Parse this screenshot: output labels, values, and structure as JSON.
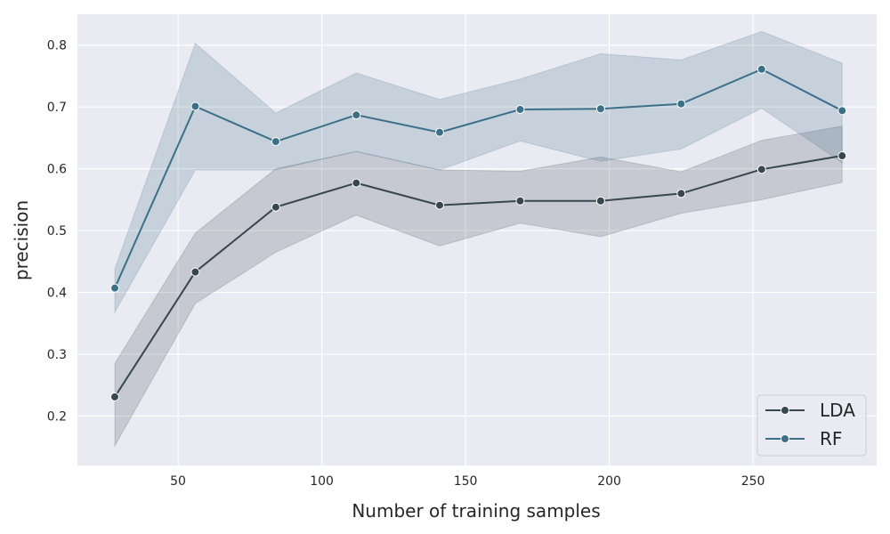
{
  "chart_data": {
    "type": "line",
    "title": "",
    "xlabel": "Number of training samples",
    "ylabel": "precision",
    "xlim": [
      15,
      293
    ],
    "ylim": [
      0.12,
      0.85
    ],
    "xticks": [
      50,
      100,
      150,
      200,
      250
    ],
    "yticks": [
      0.2,
      0.3,
      0.4,
      0.5,
      0.6,
      0.7,
      0.8
    ],
    "grid": true,
    "legend_position": "bottom-right",
    "x": [
      28,
      56,
      84,
      112,
      141,
      169,
      197,
      225,
      253,
      281
    ],
    "series": [
      {
        "name": "LDA",
        "color": "#37474f",
        "values": [
          0.231,
          0.433,
          0.538,
          0.577,
          0.541,
          0.548,
          0.548,
          0.56,
          0.599,
          0.621
        ],
        "ci_lower": [
          0.152,
          0.382,
          0.465,
          0.525,
          0.475,
          0.512,
          0.49,
          0.528,
          0.55,
          0.578
        ],
        "ci_upper": [
          0.285,
          0.496,
          0.6,
          0.628,
          0.598,
          0.596,
          0.619,
          0.595,
          0.646,
          0.669
        ]
      },
      {
        "name": "RF",
        "color": "#3b7088",
        "values": [
          0.407,
          0.701,
          0.644,
          0.687,
          0.659,
          0.696,
          0.697,
          0.705,
          0.761,
          0.694
        ],
        "ci_lower": [
          0.368,
          0.598,
          0.598,
          0.628,
          0.598,
          0.645,
          0.612,
          0.632,
          0.698,
          0.61
        ],
        "ci_upper": [
          0.438,
          0.803,
          0.69,
          0.755,
          0.712,
          0.745,
          0.786,
          0.776,
          0.822,
          0.771
        ]
      }
    ]
  }
}
